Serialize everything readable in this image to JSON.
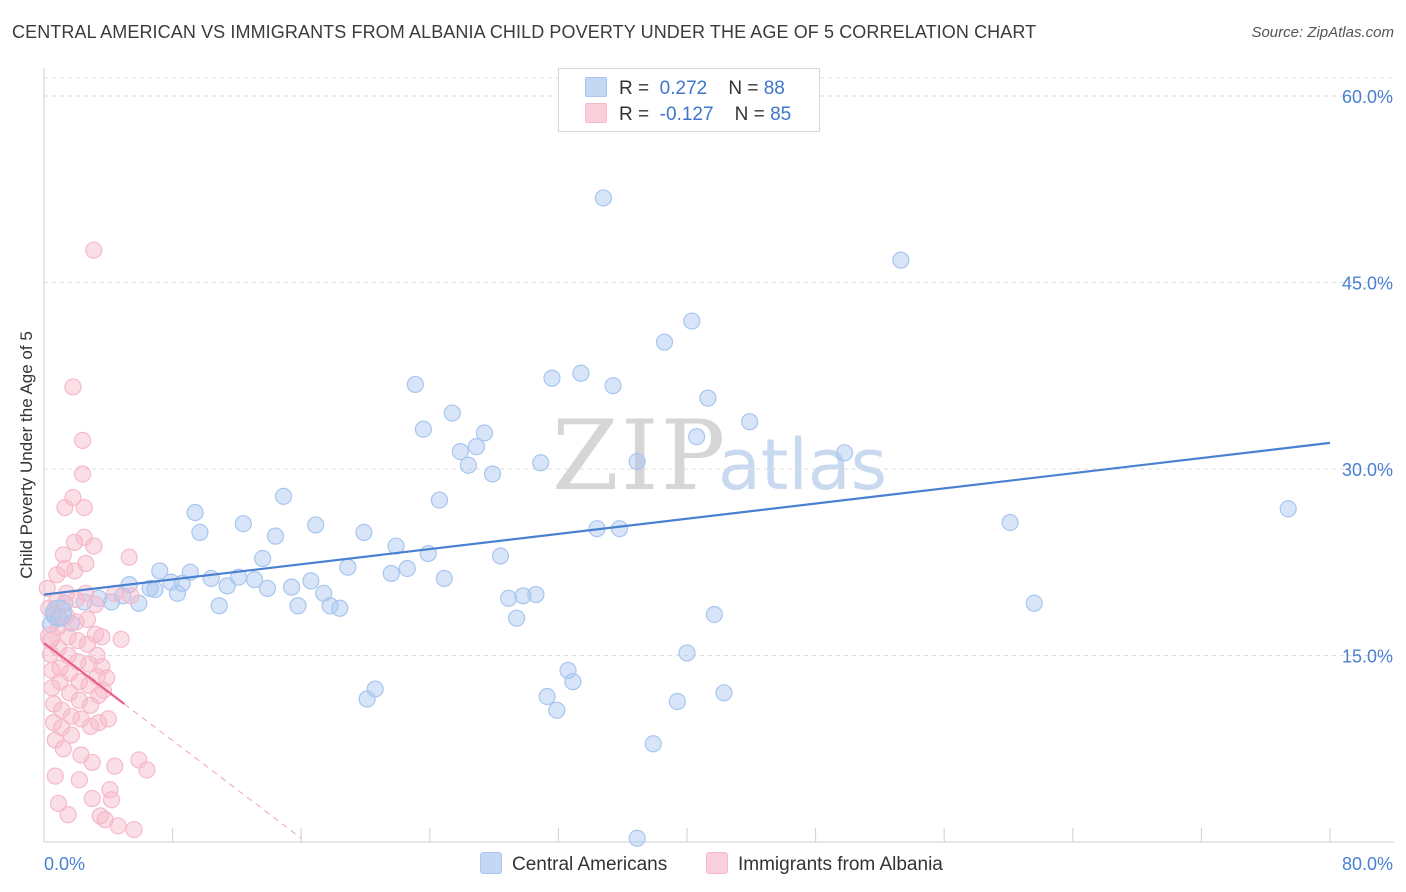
{
  "header": {
    "title": "CENTRAL AMERICAN VS IMMIGRANTS FROM ALBANIA CHILD POVERTY UNDER THE AGE OF 5 CORRELATION CHART",
    "source": "Source: ZipAtlas.com"
  },
  "watermark": {
    "zip": "ZIP",
    "atlas": "atlas"
  },
  "legend": {
    "rows": [
      {
        "r_label": "R =",
        "r_value": "0.272",
        "n_label": "N =",
        "n_value": "88",
        "color": "#a8c6ef"
      },
      {
        "r_label": "R =",
        "r_value": "-0.127",
        "n_label": "N =",
        "n_value": "85",
        "color": "#f6b9ca"
      }
    ]
  },
  "bottom_legend": {
    "items": [
      {
        "label": "Central Americans",
        "color": "#a8c6ef"
      },
      {
        "label": "Immigrants from Albania",
        "color": "#f6b9ca"
      }
    ]
  },
  "chart_data": {
    "type": "scatter",
    "title": "CENTRAL AMERICAN VS IMMIGRANTS FROM ALBANIA CHILD POVERTY UNDER THE AGE OF 5 CORRELATION CHART",
    "ylabel": "Child Poverty Under the Age of 5",
    "xlabel": "",
    "xlim": [
      0,
      80
    ],
    "ylim": [
      0,
      60
    ],
    "x_tick_labels": [
      "0.0%",
      "80.0%"
    ],
    "y_tick_labels": [
      "15.0%",
      "30.0%",
      "45.0%",
      "60.0%"
    ],
    "y_tick_values": [
      15,
      30,
      45,
      60
    ],
    "grid": true,
    "series": [
      {
        "name": "Central Americans",
        "color": "#4a80d0",
        "fill": "#a8c6ef",
        "trend": {
          "x": [
            0,
            80
          ],
          "y": [
            19.9,
            32.1
          ],
          "style": "solid"
        },
        "points": [
          [
            0.4,
            17.5
          ],
          [
            0.6,
            18.3
          ],
          [
            0.9,
            18.1
          ],
          [
            1.3,
            19.2
          ],
          [
            1.7,
            17.6
          ],
          [
            2.5,
            19.3
          ],
          [
            3.4,
            19.6
          ],
          [
            4.2,
            19.3
          ],
          [
            4.9,
            19.8
          ],
          [
            5.3,
            20.7
          ],
          [
            5.9,
            19.2
          ],
          [
            6.6,
            20.4
          ],
          [
            6.9,
            20.3
          ],
          [
            7.2,
            21.8
          ],
          [
            7.9,
            20.9
          ],
          [
            8.3,
            20.0
          ],
          [
            8.6,
            20.8
          ],
          [
            9.4,
            26.5
          ],
          [
            9.7,
            24.9
          ],
          [
            10.4,
            21.2
          ],
          [
            10.9,
            19.0
          ],
          [
            11.4,
            20.6
          ],
          [
            12.1,
            21.3
          ],
          [
            12.4,
            25.6
          ],
          [
            13.1,
            21.1
          ],
          [
            13.6,
            22.8
          ],
          [
            13.9,
            20.4
          ],
          [
            14.4,
            24.6
          ],
          [
            14.9,
            27.8
          ],
          [
            15.4,
            20.5
          ],
          [
            15.8,
            19.0
          ],
          [
            16.6,
            21.0
          ],
          [
            16.9,
            25.5
          ],
          [
            17.4,
            20.0
          ],
          [
            17.8,
            19.0
          ],
          [
            18.4,
            18.8
          ],
          [
            18.9,
            22.1
          ],
          [
            19.9,
            24.9
          ],
          [
            20.6,
            12.3
          ],
          [
            21.6,
            21.6
          ],
          [
            21.9,
            23.8
          ],
          [
            22.6,
            22.0
          ],
          [
            23.1,
            36.8
          ],
          [
            23.6,
            33.2
          ],
          [
            23.9,
            23.2
          ],
          [
            24.6,
            27.5
          ],
          [
            24.9,
            21.2
          ],
          [
            25.4,
            34.5
          ],
          [
            25.9,
            31.4
          ],
          [
            26.4,
            30.3
          ],
          [
            26.9,
            31.8
          ],
          [
            27.4,
            32.9
          ],
          [
            27.9,
            29.6
          ],
          [
            28.4,
            23.0
          ],
          [
            28.9,
            19.6
          ],
          [
            29.4,
            18.0
          ],
          [
            29.8,
            19.8
          ],
          [
            30.6,
            19.9
          ],
          [
            30.9,
            30.5
          ],
          [
            31.3,
            11.7
          ],
          [
            31.6,
            37.3
          ],
          [
            31.9,
            10.6
          ],
          [
            32.6,
            13.8
          ],
          [
            32.9,
            12.9
          ],
          [
            33.4,
            37.7
          ],
          [
            34.4,
            25.2
          ],
          [
            34.8,
            51.8
          ],
          [
            35.4,
            36.7
          ],
          [
            35.8,
            25.2
          ],
          [
            36.9,
            30.6
          ],
          [
            37.9,
            7.9
          ],
          [
            38.6,
            40.2
          ],
          [
            39.4,
            11.3
          ],
          [
            40.0,
            15.2
          ],
          [
            40.3,
            41.9
          ],
          [
            40.6,
            32.6
          ],
          [
            41.3,
            35.7
          ],
          [
            41.7,
            18.3
          ],
          [
            42.3,
            12.0
          ],
          [
            43.9,
            33.8
          ],
          [
            49.8,
            31.3
          ],
          [
            53.3,
            46.8
          ],
          [
            60.1,
            25.7
          ],
          [
            61.6,
            19.2
          ],
          [
            77.4,
            26.8
          ],
          [
            36.9,
            0.3
          ],
          [
            20.1,
            11.5
          ],
          [
            9.1,
            21.7
          ]
        ]
      },
      {
        "name": "Immigrants from Albania",
        "color": "#e8608a",
        "fill": "#f6b9ca",
        "trend": {
          "x": [
            0,
            5
          ],
          "y": [
            16.0,
            11.1
          ],
          "style": "solid",
          "extended_to": [
            16,
            0.3
          ],
          "extended_style": "dashed"
        },
        "points": [
          [
            0.2,
            20.4
          ],
          [
            0.3,
            18.8
          ],
          [
            0.4,
            16.2
          ],
          [
            0.4,
            15.1
          ],
          [
            0.5,
            13.8
          ],
          [
            0.5,
            12.4
          ],
          [
            0.6,
            11.1
          ],
          [
            0.6,
            9.6
          ],
          [
            0.7,
            8.2
          ],
          [
            0.7,
            5.3
          ],
          [
            0.8,
            21.5
          ],
          [
            0.8,
            19.4
          ],
          [
            0.9,
            17.3
          ],
          [
            0.9,
            15.6
          ],
          [
            1.0,
            14.0
          ],
          [
            1.0,
            12.9
          ],
          [
            1.1,
            10.6
          ],
          [
            1.1,
            9.2
          ],
          [
            1.2,
            7.5
          ],
          [
            1.2,
            23.1
          ],
          [
            1.3,
            26.9
          ],
          [
            1.3,
            22.0
          ],
          [
            1.4,
            20.0
          ],
          [
            1.4,
            18.2
          ],
          [
            1.5,
            16.5
          ],
          [
            1.5,
            15.0
          ],
          [
            1.6,
            13.6
          ],
          [
            1.6,
            12.0
          ],
          [
            1.7,
            10.1
          ],
          [
            1.7,
            8.6
          ],
          [
            1.8,
            36.6
          ],
          [
            1.8,
            27.7
          ],
          [
            1.9,
            24.1
          ],
          [
            1.9,
            21.8
          ],
          [
            2.0,
            19.5
          ],
          [
            2.0,
            17.7
          ],
          [
            2.1,
            16.2
          ],
          [
            2.1,
            14.5
          ],
          [
            2.2,
            12.9
          ],
          [
            2.2,
            11.4
          ],
          [
            2.3,
            9.9
          ],
          [
            2.3,
            7.0
          ],
          [
            2.4,
            29.6
          ],
          [
            2.4,
            32.3
          ],
          [
            2.5,
            26.9
          ],
          [
            2.5,
            24.5
          ],
          [
            2.6,
            22.4
          ],
          [
            2.6,
            20.0
          ],
          [
            2.7,
            17.9
          ],
          [
            2.7,
            15.9
          ],
          [
            2.8,
            14.3
          ],
          [
            2.8,
            12.6
          ],
          [
            2.9,
            11.0
          ],
          [
            2.9,
            9.3
          ],
          [
            3.0,
            6.4
          ],
          [
            3.0,
            3.5
          ],
          [
            3.1,
            47.6
          ],
          [
            3.1,
            23.8
          ],
          [
            3.2,
            19.1
          ],
          [
            3.2,
            16.7
          ],
          [
            3.3,
            15.0
          ],
          [
            3.3,
            13.3
          ],
          [
            3.4,
            11.8
          ],
          [
            3.4,
            9.6
          ],
          [
            3.5,
            2.1
          ],
          [
            3.6,
            16.5
          ],
          [
            3.6,
            14.1
          ],
          [
            3.7,
            12.2
          ],
          [
            3.8,
            1.8
          ],
          [
            3.9,
            13.2
          ],
          [
            4.0,
            9.9
          ],
          [
            4.1,
            4.2
          ],
          [
            4.2,
            3.4
          ],
          [
            4.4,
            20.0
          ],
          [
            4.4,
            6.1
          ],
          [
            4.6,
            1.3
          ],
          [
            4.8,
            16.3
          ],
          [
            5.3,
            22.9
          ],
          [
            5.4,
            19.8
          ],
          [
            5.6,
            1.0
          ],
          [
            5.9,
            6.6
          ],
          [
            6.4,
            5.8
          ],
          [
            1.5,
            2.2
          ],
          [
            2.2,
            5.0
          ],
          [
            0.9,
            3.1
          ]
        ]
      }
    ]
  }
}
